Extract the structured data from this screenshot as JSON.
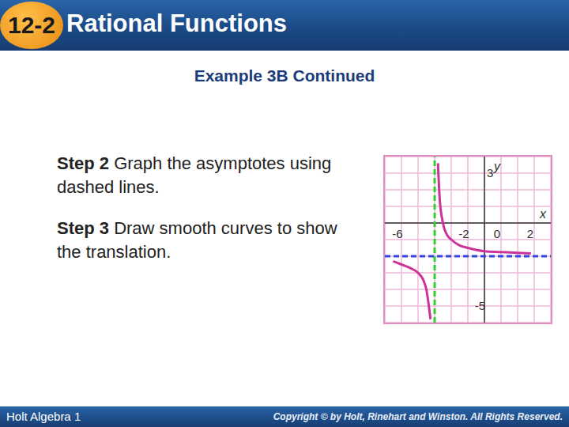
{
  "header": {
    "number": "12-2",
    "title": "Rational Functions"
  },
  "subtitle": "Example 3B Continued",
  "steps": [
    {
      "label": "Step 2",
      "text": "Graph the asymptotes using dashed lines."
    },
    {
      "label": "Step 3",
      "text": "Draw smooth curves to show the translation."
    }
  ],
  "footer": {
    "left": "Holt Algebra 1",
    "right": "Copyright © by Holt, Rinehart and Winston. All Rights Reserved."
  },
  "chart_data": {
    "type": "line",
    "x_label": "x",
    "y_label": "y",
    "x": [
      -5.5,
      -5,
      -4.5,
      -4,
      -3.7,
      -3.5,
      -3.35,
      -3.25,
      -3,
      -2.8,
      -2.7,
      -2.5,
      -2.2,
      -2,
      -1.5,
      -1,
      0,
      1,
      2,
      2.8
    ],
    "series": [
      {
        "color": "#cc3399",
        "values": [
          -2.3,
          -2.5,
          -2.7,
          -3,
          -3.4,
          -4,
          -5,
          -5.8,
          null,
          3.6,
          1.5,
          0,
          -0.8,
          -1,
          -1.35,
          -1.5,
          -1.7,
          -1.75,
          -1.8,
          -1.83
        ]
      }
    ],
    "xlim": [
      -6,
      4
    ],
    "ylim": [
      -6,
      4
    ],
    "xticks": [
      -6,
      -2,
      0,
      2
    ],
    "yticks": [
      -5,
      3
    ],
    "grid": true,
    "asymptotes": [
      {
        "x": -3,
        "color": "#33cc33",
        "line_style": "dashed"
      },
      {
        "y": -2,
        "color": "#3344dd",
        "line_style": "dashed"
      }
    ]
  }
}
